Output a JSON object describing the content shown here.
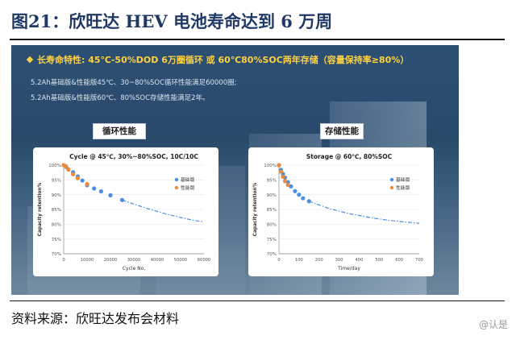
{
  "figure": {
    "title": "图21：欣旺达 HEV 电池寿命达到 6 万周",
    "source": "资料来源：欣旺达发布会材料",
    "watermark": "@认是"
  },
  "slide": {
    "headline": "长寿命特性: 45℃-50%DOD 6万圈循环 或 60℃80%SOC两年存储（容量保持率≥80%）",
    "bullets": [
      "5.2Ah基础版&性能版45℃、30~80%SOC循环性能满足60000圈;",
      "5.2Ah基础版&性能版60℃、80%SOC存储性能满足2年。"
    ],
    "colors": {
      "headline": "#ffd23d",
      "basic": "#4a8fe0",
      "performance": "#f08a3a"
    }
  },
  "chart_data": [
    {
      "type": "scatter",
      "label": "循环性能",
      "title": "Cycle @ 45℃, 30%~80%SOC, 10C/10C",
      "xlabel": "Cycle No.",
      "ylabel": "Capacity retention%",
      "xlim": [
        0,
        60000
      ],
      "ylim": [
        70,
        100
      ],
      "xticks": [
        0,
        10000,
        20000,
        30000,
        40000,
        50000,
        60000
      ],
      "yticks": [
        70,
        75,
        80,
        85,
        90,
        95,
        100
      ],
      "xtick_labels": [
        "0",
        "10000",
        "20000",
        "30000",
        "40000",
        "50000",
        "60000"
      ],
      "ytick_labels": [
        "70%",
        "75%",
        "80%",
        "85%",
        "90%",
        "95%",
        "100%"
      ],
      "legend": [
        "基础版",
        "性能版"
      ],
      "series": [
        {
          "name": "基础版",
          "color": "#4a8fe0",
          "x": [
            0,
            1000,
            2000,
            4000,
            6000,
            8000,
            10000,
            13000,
            16000,
            20000,
            25000
          ],
          "y": [
            100,
            99.4,
            98.6,
            97.6,
            96.2,
            94.8,
            93.2,
            92.1,
            91.1,
            89.8,
            88.2
          ]
        },
        {
          "name": "性能版",
          "color": "#f08a3a",
          "x": [
            0,
            1000,
            2000,
            4000,
            6000,
            10000
          ],
          "y": [
            100,
            99.6,
            98.5,
            96.9,
            95.6,
            93.6
          ]
        },
        {
          "name": "projection",
          "color": "#4a8fe0",
          "style": "dash-dot",
          "x": [
            25000,
            35000,
            45000,
            55000,
            60000
          ],
          "y": [
            88.2,
            85.5,
            83.2,
            81.4,
            80.8
          ]
        }
      ]
    },
    {
      "type": "scatter",
      "label": "存储性能",
      "title": "Storage @ 60℃, 80%SOC",
      "xlabel": "Time/day",
      "ylabel": "Capacity retention%",
      "xlim": [
        0,
        700
      ],
      "ylim": [
        70,
        100
      ],
      "xticks": [
        0,
        100,
        200,
        300,
        400,
        500,
        600,
        700
      ],
      "yticks": [
        70,
        75,
        80,
        85,
        90,
        95,
        100
      ],
      "xtick_labels": [
        "0",
        "100",
        "200",
        "300",
        "400",
        "500",
        "600",
        "700"
      ],
      "ytick_labels": [
        "70%",
        "75%",
        "80%",
        "85%",
        "90%",
        "95%",
        "100%"
      ],
      "legend": [
        "基础版",
        "性能版"
      ],
      "series": [
        {
          "name": "基础版",
          "color": "#4a8fe0",
          "x": [
            0,
            10,
            20,
            30,
            45,
            60,
            80,
            100,
            120,
            150
          ],
          "y": [
            100,
            98.4,
            97,
            95.8,
            94.2,
            92.8,
            91.2,
            90,
            88.8,
            87.8
          ]
        },
        {
          "name": "性能版",
          "color": "#f08a3a",
          "x": [
            0,
            10,
            20,
            30,
            45
          ],
          "y": [
            100,
            97.8,
            96.1,
            94.6,
            93.3
          ]
        },
        {
          "name": "projection",
          "color": "#4a8fe0",
          "style": "dash-dot",
          "x": [
            150,
            250,
            350,
            450,
            550,
            700
          ],
          "y": [
            87.8,
            85.3,
            83.6,
            82.3,
            81.3,
            80.3
          ]
        }
      ]
    }
  ]
}
